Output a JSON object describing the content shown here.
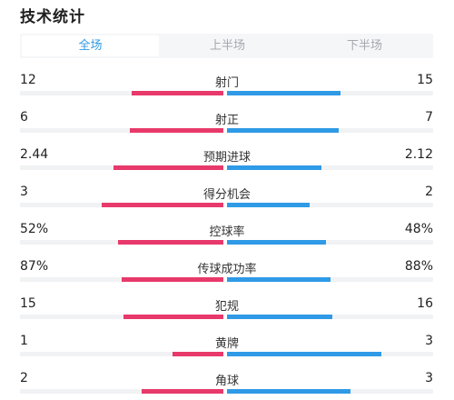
{
  "title": "技术统计",
  "tabs": [
    {
      "label": "全场",
      "active": true
    },
    {
      "label": "上半场",
      "active": false
    },
    {
      "label": "下半场",
      "active": false
    }
  ],
  "colors": {
    "home_bar": "#e8396b",
    "away_bar": "#2f9ae6",
    "active_tab": "#2f9ae6"
  },
  "stats": [
    {
      "name": "射门",
      "home": "12",
      "away": "15",
      "home_fill": 0.45,
      "away_fill": 0.55
    },
    {
      "name": "射正",
      "home": "6",
      "away": "7",
      "home_fill": 0.46,
      "away_fill": 0.54
    },
    {
      "name": "预期进球",
      "home": "2.44",
      "away": "2.12",
      "home_fill": 0.54,
      "away_fill": 0.46
    },
    {
      "name": "得分机会",
      "home": "3",
      "away": "2",
      "home_fill": 0.6,
      "away_fill": 0.4
    },
    {
      "name": "控球率",
      "home": "52%",
      "away": "48%",
      "home_fill": 0.52,
      "away_fill": 0.48
    },
    {
      "name": "传球成功率",
      "home": "87%",
      "away": "88%",
      "home_fill": 0.5,
      "away_fill": 0.5
    },
    {
      "name": "犯规",
      "home": "15",
      "away": "16",
      "home_fill": 0.49,
      "away_fill": 0.51
    },
    {
      "name": "黄牌",
      "home": "1",
      "away": "3",
      "home_fill": 0.25,
      "away_fill": 0.75
    },
    {
      "name": "角球",
      "home": "2",
      "away": "3",
      "home_fill": 0.4,
      "away_fill": 0.6
    }
  ]
}
